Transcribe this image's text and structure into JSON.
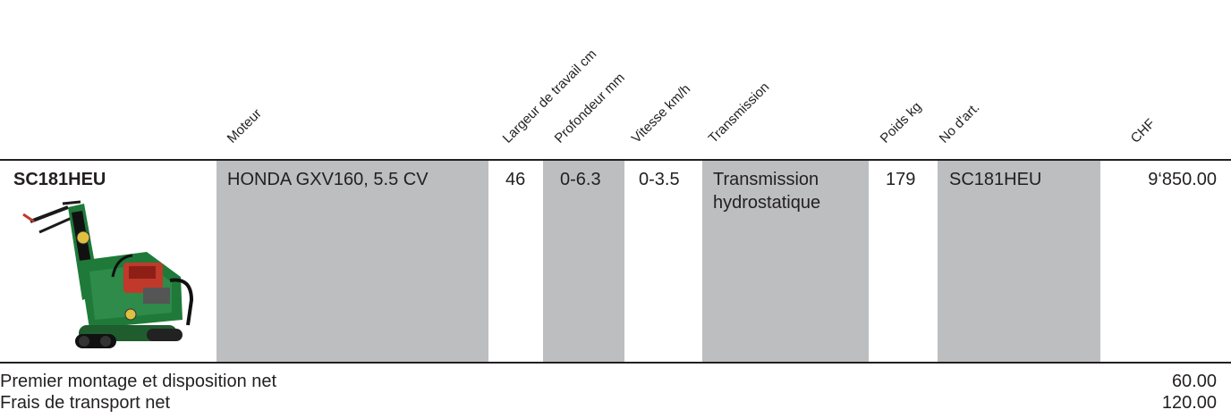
{
  "headers": {
    "moteur": "Moteur",
    "largeur": "Largeur de travail cm",
    "profondeur": "Profondeur mm",
    "vitesse": "Vitesse km/h",
    "transmission": "Transmission",
    "poids": "Poids kg",
    "no_art": "No d'art.",
    "chf": "CHF"
  },
  "product": {
    "model": "SC181HEU",
    "image": "sod-cutter-machine",
    "moteur": "HONDA GXV160, 5.5 CV",
    "largeur": "46",
    "profondeur": "0-6.3",
    "vitesse": "0-3.5",
    "transmission_line1": "Transmission",
    "transmission_line2": "hydrostatique",
    "poids": "179",
    "no_art": "SC181HEU",
    "price": "9‘850.00"
  },
  "extras": [
    {
      "label": "Premier montage et disposition net",
      "price": "60.00"
    },
    {
      "label": "Frais de transport net",
      "price": "120.00"
    }
  ],
  "colors": {
    "shade": "#bcbec0",
    "text": "#231f20"
  }
}
